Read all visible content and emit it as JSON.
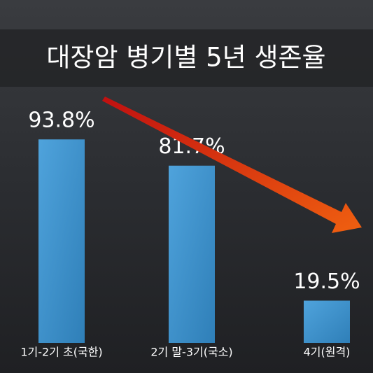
{
  "chart_data": {
    "type": "bar",
    "title": "대장암 병기별 5년 생존율",
    "categories": [
      "1기-2기 초(국한)",
      "2기 말-3기(국소)",
      "4기(원격)"
    ],
    "values": [
      93.8,
      81.7,
      19.5
    ],
    "value_labels": [
      "93.8%",
      "81.7%",
      "19.5%"
    ],
    "color": "#3d8fca"
  }
}
